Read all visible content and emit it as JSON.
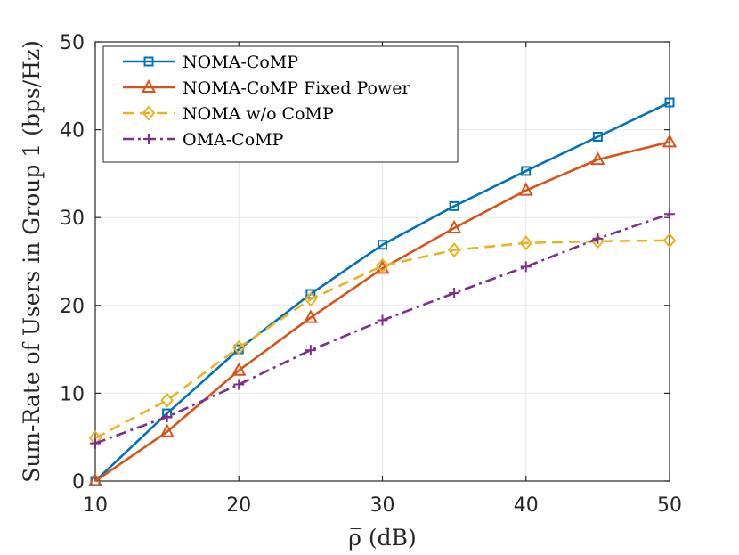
{
  "chart_data": {
    "type": "line",
    "title": "",
    "xlabel": "ρ̅ (dB)",
    "ylabel": "Sum-Rate of Users in Group 1 (bps/Hz)",
    "xlim": [
      10,
      50
    ],
    "ylim": [
      0,
      50
    ],
    "xticks": [
      10,
      20,
      30,
      40,
      50
    ],
    "yticks": [
      0,
      10,
      20,
      30,
      40,
      50
    ],
    "grid": true,
    "legend_position": "top-left",
    "x": [
      10,
      15,
      20,
      25,
      30,
      35,
      40,
      45,
      50
    ],
    "series": [
      {
        "name": "NOMA-CoMP",
        "color": "#0072bd",
        "marker": "square",
        "dash": "solid",
        "values": [
          0,
          7.7,
          15.0,
          21.3,
          26.9,
          31.3,
          35.3,
          39.2,
          43.1
        ]
      },
      {
        "name": "NOMA-CoMP Fixed Power",
        "color": "#d95319",
        "marker": "triangle",
        "dash": "solid",
        "values": [
          0,
          5.6,
          12.6,
          18.6,
          24.2,
          28.8,
          33.1,
          36.6,
          38.6
        ]
      },
      {
        "name": "NOMA w/o CoMP",
        "color": "#edb120",
        "marker": "diamond",
        "dash": "dashed",
        "values": [
          4.9,
          9.2,
          15.2,
          20.7,
          24.5,
          26.3,
          27.1,
          27.3,
          27.4
        ]
      },
      {
        "name": "OMA-CoMP",
        "color": "#7e2f8e",
        "marker": "plus",
        "dash": "dashdot",
        "values": [
          4.3,
          7.3,
          11.0,
          14.9,
          18.3,
          21.4,
          24.4,
          27.6,
          30.4
        ]
      }
    ]
  }
}
